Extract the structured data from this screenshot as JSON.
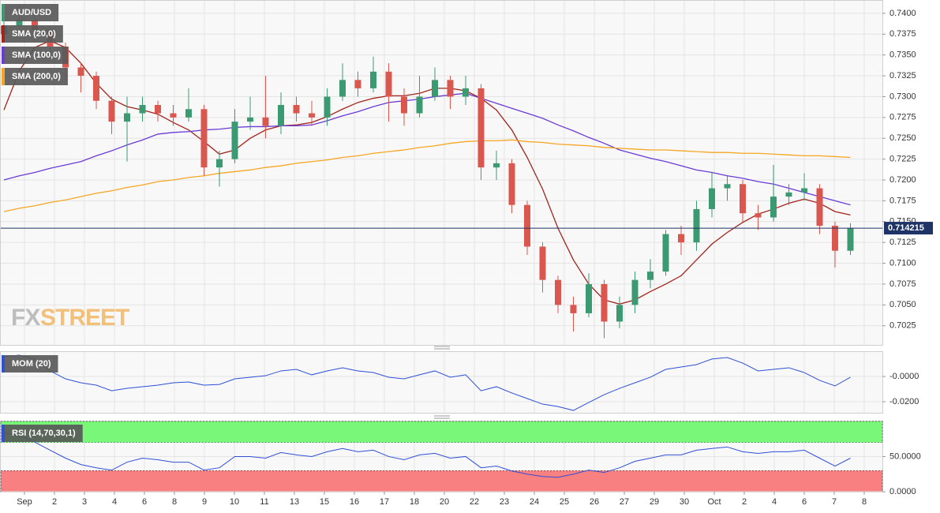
{
  "chart_data": [
    {
      "type": "candlestick",
      "title": "AUD/USD",
      "watermark": [
        "FX",
        "STREET"
      ],
      "up_color": "#3c9a72",
      "down_color": "#d9574e",
      "open": [
        0.7375,
        0.7385,
        0.7392,
        0.738,
        0.736,
        0.7335,
        0.7325,
        0.7295,
        0.727,
        0.728,
        0.729,
        0.728,
        0.7275,
        0.7285,
        0.7215,
        0.7225,
        0.727,
        0.7275,
        0.7265,
        0.729,
        0.728,
        0.7275,
        0.73,
        0.732,
        0.731,
        0.733,
        0.73,
        0.728,
        0.73,
        0.732,
        0.73,
        0.731,
        0.7215,
        0.722,
        0.717,
        0.712,
        0.708,
        0.705,
        0.704,
        0.7075,
        0.703,
        0.705,
        0.708,
        0.709,
        0.7135,
        0.7125,
        0.7165,
        0.719,
        0.7195,
        0.716,
        0.7155,
        0.718,
        0.7185,
        0.719,
        0.7145,
        0.7115
      ],
      "high": [
        0.74,
        0.741,
        0.7398,
        0.7385,
        0.7365,
        0.734,
        0.733,
        0.73,
        0.73,
        0.73,
        0.7295,
        0.729,
        0.731,
        0.729,
        0.7235,
        0.7285,
        0.73,
        0.7325,
        0.7305,
        0.73,
        0.7295,
        0.731,
        0.734,
        0.733,
        0.7348,
        0.734,
        0.731,
        0.7325,
        0.7335,
        0.7325,
        0.7325,
        0.7315,
        0.7235,
        0.7225,
        0.7175,
        0.7125,
        0.7085,
        0.706,
        0.7088,
        0.708,
        0.706,
        0.709,
        0.7105,
        0.714,
        0.7145,
        0.7175,
        0.721,
        0.7205,
        0.72,
        0.717,
        0.7218,
        0.7195,
        0.7208,
        0.7195,
        0.715,
        0.7148
      ],
      "low": [
        0.7365,
        0.7375,
        0.7368,
        0.735,
        0.732,
        0.7305,
        0.7285,
        0.7255,
        0.7222,
        0.727,
        0.727,
        0.7265,
        0.727,
        0.7205,
        0.7192,
        0.722,
        0.726,
        0.725,
        0.7255,
        0.727,
        0.7265,
        0.7265,
        0.7295,
        0.73,
        0.7305,
        0.727,
        0.7265,
        0.7275,
        0.7295,
        0.7285,
        0.729,
        0.72,
        0.72,
        0.716,
        0.711,
        0.7065,
        0.704,
        0.7018,
        0.7035,
        0.701,
        0.7022,
        0.704,
        0.707,
        0.7085,
        0.711,
        0.7115,
        0.7155,
        0.7175,
        0.715,
        0.714,
        0.715,
        0.717,
        0.7175,
        0.7135,
        0.7095,
        0.711
      ],
      "close": [
        0.7385,
        0.7392,
        0.738,
        0.736,
        0.7335,
        0.7325,
        0.7295,
        0.727,
        0.728,
        0.729,
        0.728,
        0.7275,
        0.7285,
        0.7215,
        0.7225,
        0.727,
        0.7275,
        0.7265,
        0.729,
        0.728,
        0.7275,
        0.73,
        0.732,
        0.731,
        0.733,
        0.73,
        0.728,
        0.73,
        0.732,
        0.73,
        0.731,
        0.7215,
        0.722,
        0.717,
        0.712,
        0.708,
        0.705,
        0.704,
        0.7075,
        0.703,
        0.705,
        0.708,
        0.709,
        0.7135,
        0.7125,
        0.7165,
        0.719,
        0.7195,
        0.716,
        0.7155,
        0.718,
        0.7185,
        0.719,
        0.7145,
        0.7115,
        0.7142
      ],
      "series": [
        {
          "name": "SMA (20,0)",
          "color": "#a3241c",
          "values": [
            0.7284,
            0.7331,
            0.7359,
            0.7367,
            0.7359,
            0.734,
            0.7316,
            0.7297,
            0.7288,
            0.7284,
            0.7279,
            0.7269,
            0.726,
            0.7246,
            0.7231,
            0.7236,
            0.725,
            0.726,
            0.7265,
            0.7266,
            0.7269,
            0.7276,
            0.7285,
            0.7293,
            0.7298,
            0.7301,
            0.7301,
            0.7304,
            0.731,
            0.731,
            0.7307,
            0.7298,
            0.7284,
            0.726,
            0.7227,
            0.7189,
            0.7142,
            0.7104,
            0.7075,
            0.7056,
            0.7051,
            0.7056,
            0.7066,
            0.7075,
            0.7085,
            0.7104,
            0.7123,
            0.7137,
            0.7149,
            0.7159,
            0.7165,
            0.7172,
            0.7177,
            0.7172,
            0.7162,
            0.7158
          ]
        },
        {
          "name": "SMA (100,0)",
          "color": "#6a3bd6",
          "values": [
            0.72,
            0.7205,
            0.7209,
            0.7214,
            0.7218,
            0.7222,
            0.7229,
            0.7235,
            0.7242,
            0.7248,
            0.7255,
            0.7257,
            0.7258,
            0.726,
            0.7261,
            0.7263,
            0.7264,
            0.7264,
            0.7265,
            0.7265,
            0.7266,
            0.7271,
            0.7277,
            0.7282,
            0.7288,
            0.7293,
            0.7295,
            0.7297,
            0.73,
            0.7302,
            0.7304,
            0.7298,
            0.7292,
            0.7286,
            0.728,
            0.7274,
            0.7266,
            0.7259,
            0.7251,
            0.7244,
            0.7236,
            0.7231,
            0.7226,
            0.7222,
            0.7217,
            0.7212,
            0.7209,
            0.7205,
            0.7202,
            0.7198,
            0.7195,
            0.719,
            0.7185,
            0.718,
            0.7175,
            0.717
          ]
        },
        {
          "name": "SMA (200,0)",
          "color": "#f5a623",
          "values": [
            0.7162,
            0.7166,
            0.7169,
            0.7173,
            0.7176,
            0.718,
            0.7184,
            0.7187,
            0.7191,
            0.7194,
            0.7198,
            0.72,
            0.7203,
            0.7205,
            0.7208,
            0.721,
            0.7212,
            0.7215,
            0.7217,
            0.722,
            0.7222,
            0.7224,
            0.7227,
            0.7229,
            0.7232,
            0.7234,
            0.7236,
            0.7239,
            0.7241,
            0.7244,
            0.7246,
            0.7247,
            0.7247,
            0.7248,
            0.7246,
            0.7245,
            0.7243,
            0.7242,
            0.7241,
            0.7239,
            0.7238,
            0.7237,
            0.7236,
            0.7236,
            0.7235,
            0.7234,
            0.7233,
            0.7233,
            0.7232,
            0.7232,
            0.7231,
            0.723,
            0.7229,
            0.7229,
            0.7228,
            0.7227
          ]
        }
      ],
      "last_price": 0.714215,
      "last_price_color": "#1f3466",
      "ylim": [
        0.7002,
        0.7416
      ],
      "yticks": [
        {
          "value": 0.7025,
          "label": "0.7025"
        },
        {
          "value": 0.705,
          "label": "0.7050"
        },
        {
          "value": 0.7075,
          "label": "0.7075"
        },
        {
          "value": 0.71,
          "label": "0.7100"
        },
        {
          "value": 0.7125,
          "label": "0.7125"
        },
        {
          "value": 0.715,
          "label": "0.7150"
        },
        {
          "value": 0.7175,
          "label": "0.7175"
        },
        {
          "value": 0.72,
          "label": "0.7200"
        },
        {
          "value": 0.7225,
          "label": "0.7225"
        },
        {
          "value": 0.725,
          "label": "0.7250"
        },
        {
          "value": 0.7275,
          "label": "0.7275"
        },
        {
          "value": 0.73,
          "label": "0.7300"
        },
        {
          "value": 0.7325,
          "label": "0.7325"
        },
        {
          "value": 0.735,
          "label": "0.7350"
        },
        {
          "value": 0.7375,
          "label": "0.7375"
        },
        {
          "value": 0.74,
          "label": "0.7400"
        }
      ],
      "grid": true,
      "x_labels": [
        "Sep",
        "2",
        "3",
        "4",
        "6",
        "8",
        "9",
        "10",
        "11",
        "13",
        "15",
        "16",
        "17",
        "18",
        "20",
        "22",
        "23",
        "24",
        "25",
        "26",
        "27",
        "29",
        "30",
        "Oct",
        "2",
        "4",
        "6",
        "7",
        "8"
      ]
    },
    {
      "type": "line",
      "series": [
        {
          "name": "MOM (20)",
          "color": "#2f4fd6",
          "values": [
            0.0156,
            0.0169,
            0.0138,
            0.0044,
            -0.0019,
            -0.005,
            -0.0069,
            -0.0113,
            -0.0094,
            -0.0081,
            -0.0069,
            -0.005,
            -0.0044,
            -0.0069,
            -0.0063,
            -0.0019,
            -0.0006,
            0.0006,
            0.0044,
            0.0056,
            0.0013,
            0.0044,
            0.0069,
            0.0044,
            0.0031,
            -0.0006,
            -0.0019,
            0.0013,
            0.0044,
            -0.0006,
            0.0013,
            -0.0113,
            -0.0081,
            -0.0131,
            -0.0175,
            -0.0219,
            -0.0238,
            -0.0269,
            -0.0206,
            -0.0144,
            -0.0094,
            -0.005,
            -0.0006,
            0.0056,
            0.0075,
            0.0094,
            0.0138,
            0.015,
            0.0106,
            0.0044,
            0.0056,
            0.0069,
            0.0031,
            -0.0031,
            -0.0075,
            -0.0006
          ]
        }
      ],
      "ylim": [
        -0.02875,
        0.02
      ],
      "yticks": [
        {
          "value": 0,
          "label": "-0.0000"
        },
        {
          "value": -0.02,
          "label": "-0.0200"
        }
      ],
      "grid": true
    },
    {
      "type": "line",
      "series": [
        {
          "name": "RSI (14,70,30,1)",
          "color": "#2f4fd6",
          "values": [
            84,
            79.5,
            70.5,
            59,
            47.7,
            38.6,
            34,
            30.7,
            42,
            47.7,
            45.5,
            42,
            42,
            30.7,
            34,
            50,
            50,
            47.7,
            55.7,
            52.3,
            50,
            56.8,
            61.4,
            56.8,
            59,
            50,
            45.5,
            52.3,
            54.5,
            47.7,
            50,
            34,
            36.4,
            29.5,
            25,
            21.6,
            20.5,
            25,
            30.7,
            27.3,
            34,
            43.2,
            47.7,
            52.3,
            52.3,
            59,
            61.4,
            63.6,
            56.8,
            54.5,
            56.8,
            56.8,
            59,
            47.7,
            36.4,
            47.7
          ]
        }
      ],
      "bands": [
        {
          "from": 70,
          "to": 100,
          "color": "#79f779"
        },
        {
          "from": 0,
          "to": 30,
          "color": "#f98080"
        }
      ],
      "ylim": [
        0,
        101
      ],
      "yticks": [
        {
          "value": 0,
          "label": "0.0000"
        },
        {
          "value": 50,
          "label": "50.0000"
        }
      ],
      "grid": true
    }
  ]
}
